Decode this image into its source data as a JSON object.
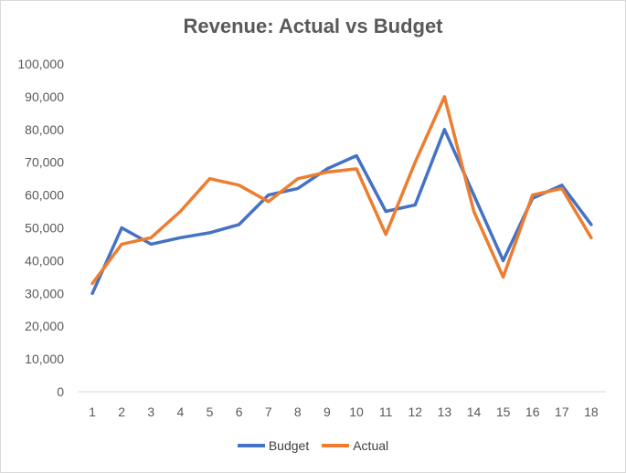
{
  "chart_data": {
    "type": "line",
    "title": "Revenue: Actual vs Budget",
    "xlabel": "",
    "ylabel": "",
    "categories": [
      "1",
      "2",
      "3",
      "4",
      "5",
      "6",
      "7",
      "8",
      "9",
      "10",
      "11",
      "12",
      "13",
      "14",
      "15",
      "16",
      "17",
      "18"
    ],
    "ylim": [
      0,
      100000
    ],
    "yticks": [
      "0",
      "10,000",
      "20,000",
      "30,000",
      "40,000",
      "50,000",
      "60,000",
      "70,000",
      "80,000",
      "90,000",
      "100,000"
    ],
    "ytick_values": [
      0,
      10000,
      20000,
      30000,
      40000,
      50000,
      60000,
      70000,
      80000,
      90000,
      100000
    ],
    "grid": false,
    "legend_position": "bottom",
    "series": [
      {
        "name": "Budget",
        "color": "#4472c4",
        "values": [
          30000,
          50000,
          45000,
          47000,
          48500,
          51000,
          60000,
          62000,
          68000,
          72000,
          55000,
          57000,
          80000,
          60000,
          40000,
          59000,
          63000,
          51000
        ]
      },
      {
        "name": "Actual",
        "color": "#ed7d31",
        "values": [
          33000,
          45000,
          47000,
          55000,
          65000,
          63000,
          58000,
          65000,
          67000,
          68000,
          48000,
          70000,
          90000,
          55000,
          35000,
          60000,
          62000,
          47000
        ]
      }
    ]
  }
}
